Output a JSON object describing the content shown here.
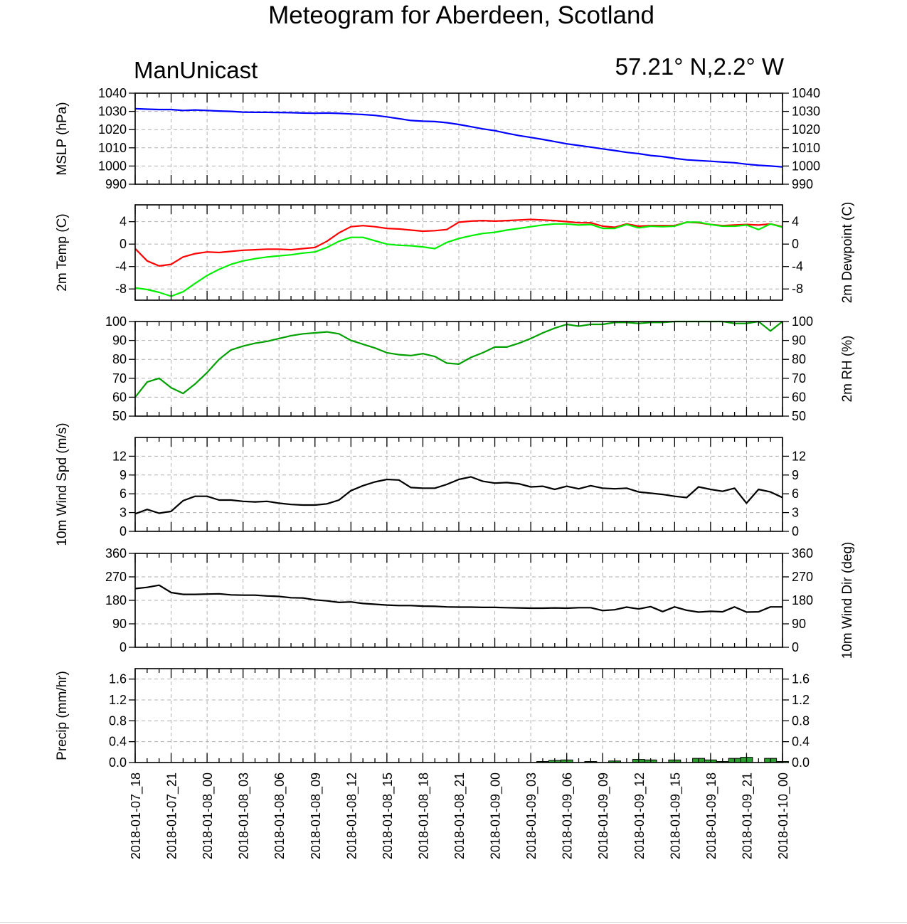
{
  "title": "Meteogram for Aberdeen, Scotland",
  "model": "ManUnicast",
  "location": "57.21° N,2.2° W",
  "colors": {
    "mslp": "#0000ff",
    "temp": "#ff0000",
    "dewpoint": "#00ee00",
    "rh": "#00a000",
    "wind": "#000000",
    "precip_fill": "#2ca02c"
  },
  "chart_data": {
    "type": "line",
    "x_tick_labels": [
      "2018-01-07_18",
      "2018-01-07_21",
      "2018-01-08_00",
      "2018-01-08_03",
      "2018-01-08_06",
      "2018-01-08_09",
      "2018-01-08_12",
      "2018-01-08_15",
      "2018-01-08_18",
      "2018-01-08_21",
      "2018-01-09_00",
      "2018-01-09_03",
      "2018-01-09_06",
      "2018-01-09_09",
      "2018-01-09_12",
      "2018-01-09_15",
      "2018-01-09_18",
      "2018-01-09_21",
      "2018-01-10_00"
    ],
    "forecast_hours": [
      0,
      1,
      2,
      3,
      4,
      5,
      6,
      7,
      8,
      9,
      10,
      11,
      12,
      13,
      14,
      15,
      16,
      17,
      18,
      19,
      20,
      21,
      22,
      23,
      24,
      25,
      26,
      27,
      28,
      29,
      30,
      31,
      32,
      33,
      34,
      35,
      36,
      37,
      38,
      39,
      40,
      41,
      42,
      43,
      44,
      45,
      46,
      47,
      48,
      49,
      50,
      51,
      52,
      53,
      54
    ],
    "panels": [
      {
        "id": "mslp",
        "left_label": "MSLP (hPa)",
        "right_label": "",
        "ylim": [
          990,
          1040
        ],
        "yticks": [
          990,
          1000,
          1010,
          1020,
          1030,
          1040
        ],
        "yticks_right": [
          990,
          1000,
          1010,
          1020,
          1030,
          1040
        ],
        "series": [
          {
            "color_key": "mslp",
            "values": [
              1031.5,
              1031.2,
              1031.0,
              1031.0,
              1030.5,
              1030.8,
              1030.5,
              1030.2,
              1030.0,
              1029.6,
              1029.5,
              1029.5,
              1029.4,
              1029.3,
              1029.1,
              1029.0,
              1029.1,
              1028.9,
              1028.6,
              1028.3,
              1027.8,
              1027.0,
              1026.0,
              1025.0,
              1024.6,
              1024.4,
              1023.8,
              1022.8,
              1021.6,
              1020.4,
              1019.4,
              1018.0,
              1016.7,
              1015.7,
              1014.6,
              1013.4,
              1012.2,
              1011.3,
              1010.4,
              1009.4,
              1008.5,
              1007.5,
              1006.8,
              1005.8,
              1005.2,
              1004.2,
              1003.4,
              1003.0,
              1002.6,
              1002.2,
              1001.8,
              1001.0,
              1000.4,
              1000.0,
              999.5
            ]
          }
        ]
      },
      {
        "id": "temp",
        "left_label": "2m Temp (C)",
        "right_label": "2m Dewpoint (C)",
        "ylim": [
          -10,
          7
        ],
        "yticks": [
          -8,
          -4,
          0,
          4
        ],
        "yticks_right": [
          -8,
          -4,
          0,
          4
        ],
        "series": [
          {
            "color_key": "temp",
            "values": [
              -0.8,
              -3.0,
              -3.9,
              -3.6,
              -2.3,
              -1.7,
              -1.4,
              -1.5,
              -1.3,
              -1.1,
              -1.0,
              -0.9,
              -0.9,
              -1.0,
              -0.8,
              -0.6,
              0.5,
              2.0,
              3.1,
              3.3,
              3.1,
              2.8,
              2.7,
              2.5,
              2.3,
              2.4,
              2.6,
              3.9,
              4.1,
              4.2,
              4.1,
              4.2,
              4.3,
              4.4,
              4.3,
              4.2,
              4.0,
              3.8,
              3.8,
              3.2,
              3.0,
              3.6,
              3.2,
              3.3,
              3.3,
              3.3,
              3.9,
              3.8,
              3.5,
              3.3,
              3.4,
              3.5,
              3.4,
              3.6,
              3.1
            ]
          },
          {
            "color_key": "dewpoint",
            "values": [
              -7.8,
              -8.1,
              -8.6,
              -9.3,
              -8.5,
              -7.0,
              -5.6,
              -4.5,
              -3.6,
              -3.0,
              -2.6,
              -2.3,
              -2.1,
              -1.9,
              -1.6,
              -1.4,
              -0.6,
              0.5,
              1.2,
              1.2,
              0.6,
              0.0,
              -0.2,
              -0.3,
              -0.5,
              -0.8,
              0.3,
              1.0,
              1.5,
              1.9,
              2.1,
              2.5,
              2.8,
              3.1,
              3.4,
              3.6,
              3.6,
              3.4,
              3.5,
              2.8,
              2.8,
              3.5,
              2.9,
              3.2,
              3.1,
              3.2,
              3.9,
              3.9,
              3.5,
              3.2,
              3.2,
              3.4,
              2.6,
              3.6,
              3.0
            ]
          }
        ]
      },
      {
        "id": "rh",
        "left_label": "",
        "right_label": "2m RH (%)",
        "ylim": [
          50,
          100
        ],
        "yticks": [
          50,
          60,
          70,
          80,
          90,
          100
        ],
        "yticks_right": [
          50,
          60,
          70,
          80,
          90,
          100
        ],
        "series": [
          {
            "color_key": "rh",
            "values": [
              60,
              68,
              70,
              65,
              62,
              67,
              73,
              80,
              85,
              87,
              88.5,
              89.5,
              91,
              92.5,
              93.5,
              94,
              94.5,
              93.5,
              90,
              88,
              86,
              83.5,
              82.5,
              82,
              83,
              81.5,
              78,
              77.5,
              81,
              83.5,
              86.5,
              86.5,
              88.5,
              91,
              94,
              96.5,
              98.5,
              97.5,
              98.5,
              98.5,
              99.5,
              99.5,
              99,
              99.5,
              99.5,
              100,
              100,
              100,
              100,
              100,
              99,
              99,
              100,
              95,
              100
            ]
          }
        ]
      },
      {
        "id": "wspd",
        "left_label": "10m Wind Spd (m/s)",
        "right_label": "",
        "ylim": [
          0,
          15
        ],
        "yticks": [
          0,
          3,
          6,
          9,
          12
        ],
        "yticks_right": [
          0,
          3,
          6,
          9,
          12
        ],
        "series": [
          {
            "color_key": "wind",
            "values": [
              2.8,
              3.5,
              2.9,
              3.2,
              4.9,
              5.6,
              5.6,
              5.0,
              5.0,
              4.8,
              4.7,
              4.8,
              4.5,
              4.3,
              4.2,
              4.2,
              4.4,
              5.0,
              6.5,
              7.3,
              7.9,
              8.3,
              8.2,
              7.0,
              6.9,
              6.9,
              7.5,
              8.3,
              8.7,
              8.0,
              7.7,
              7.8,
              7.6,
              7.1,
              7.2,
              6.7,
              7.2,
              6.8,
              7.3,
              6.9,
              6.8,
              6.9,
              6.3,
              6.1,
              5.9,
              5.6,
              5.4,
              7.1,
              6.7,
              6.4,
              6.9,
              4.5,
              6.7,
              6.3,
              5.4
            ]
          }
        ]
      },
      {
        "id": "wdir",
        "left_label": "",
        "right_label": "10m Wind Dir (deg)",
        "ylim": [
          0,
          360
        ],
        "yticks": [
          0,
          90,
          180,
          270,
          360
        ],
        "yticks_right": [
          0,
          90,
          180,
          270,
          360
        ],
        "series": [
          {
            "color_key": "wind",
            "values": [
              225,
              230,
              238,
              210,
              203,
              203,
              204,
              205,
              201,
              200,
              200,
              197,
              195,
              190,
              189,
              182,
              178,
              172,
              174,
              168,
              165,
              162,
              160,
              160,
              158,
              157,
              155,
              154,
              154,
              153,
              153,
              152,
              151,
              150,
              150,
              151,
              150,
              152,
              152,
              141,
              144,
              154,
              147,
              156,
              137,
              155,
              142,
              135,
              138,
              136,
              155,
              135,
              136,
              155,
              155
            ]
          }
        ]
      },
      {
        "id": "precip",
        "left_label": "Precip (mm/hr)",
        "right_label": "",
        "ylim": [
          0,
          1.8
        ],
        "yticks": [
          0.0,
          0.4,
          0.8,
          1.2,
          1.6
        ],
        "ytick_labels": [
          "0.0",
          "0.4",
          "0.8",
          "1.2",
          "1.6"
        ],
        "bars": {
          "color_key": "precip_fill",
          "values": [
            0,
            0,
            0,
            0,
            0,
            0,
            0,
            0,
            0,
            0,
            0,
            0,
            0,
            0,
            0,
            0,
            0,
            0,
            0,
            0,
            0,
            0,
            0,
            0,
            0,
            0,
            0,
            0,
            0,
            0,
            0,
            0,
            0,
            0,
            0.02,
            0.04,
            0.05,
            0,
            0.02,
            0,
            0.03,
            0,
            0.06,
            0.05,
            0,
            0.05,
            0,
            0.08,
            0.05,
            0.02,
            0.08,
            0.1,
            0,
            0.08,
            0.02
          ]
        }
      }
    ]
  }
}
